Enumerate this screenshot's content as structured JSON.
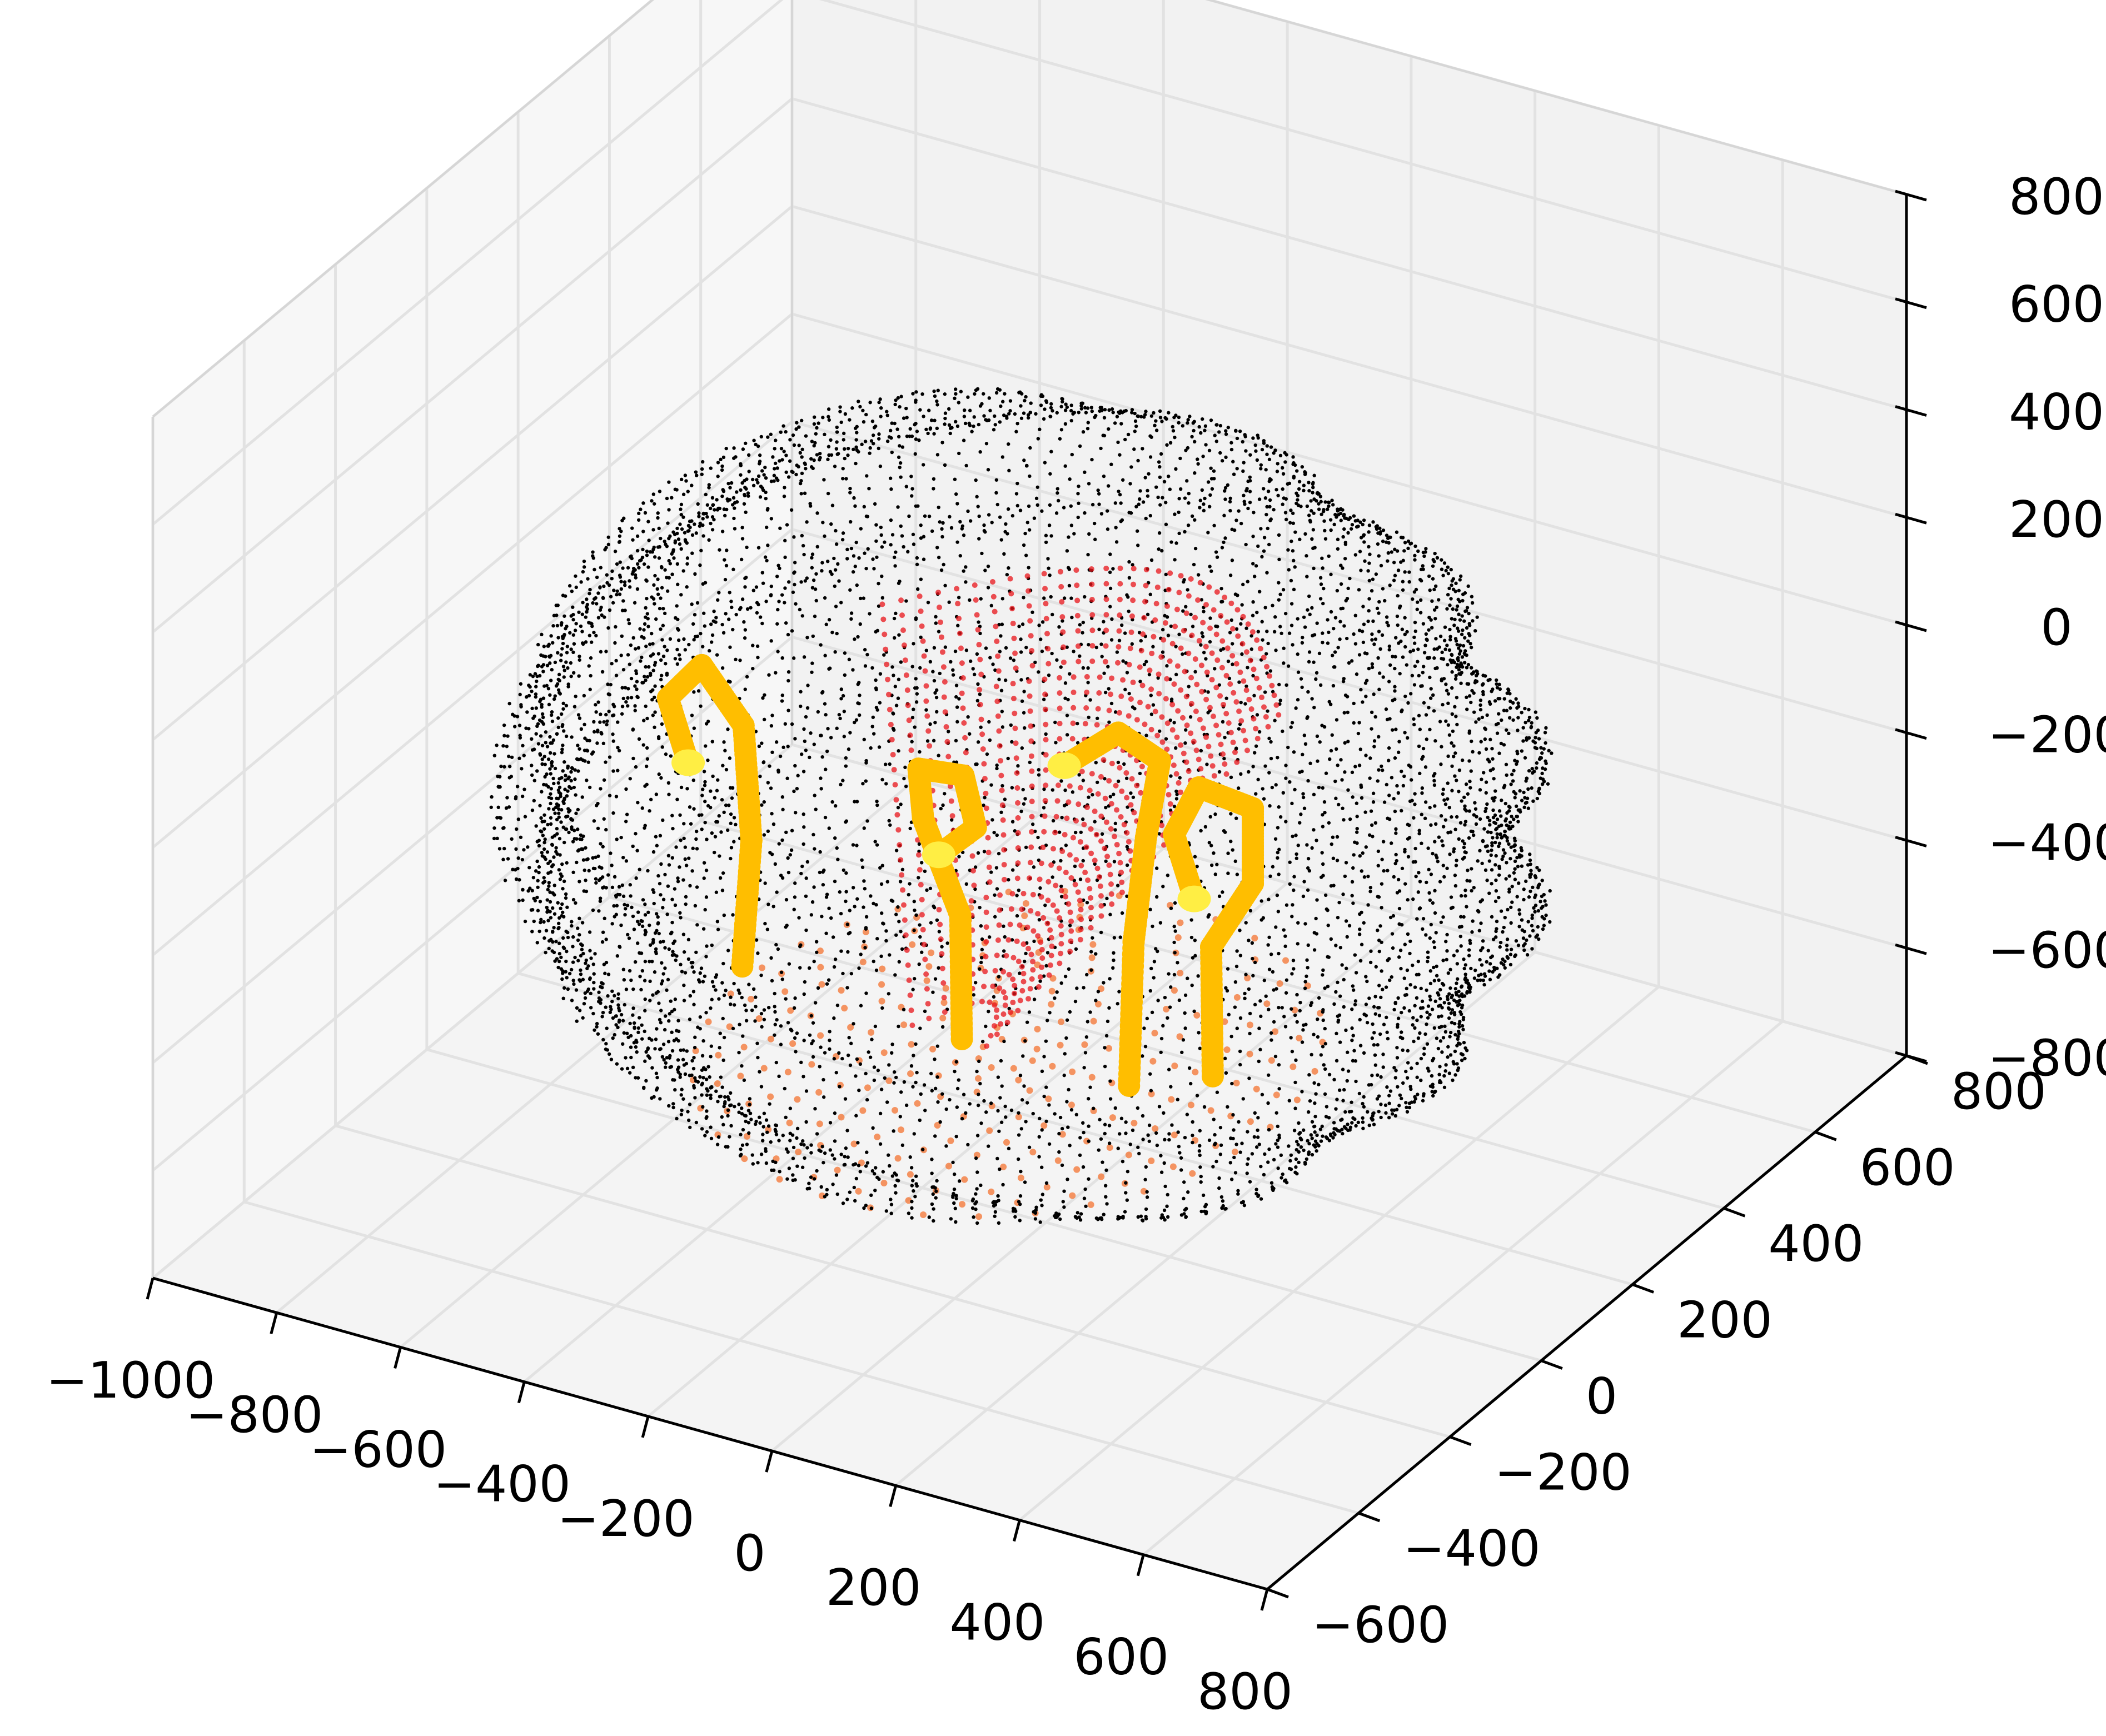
{
  "chart_data": {
    "type": "scatter",
    "projection": "3d",
    "grid": true,
    "legend": "none",
    "x_axis": {
      "lim": [
        -1000,
        800
      ],
      "ticks": [
        -1000,
        -800,
        -600,
        -400,
        -200,
        0,
        200,
        400,
        600,
        800
      ],
      "tick_labels": [
        "−1000",
        "−800",
        "−600",
        "−400",
        "−200",
        "0",
        "200",
        "400",
        "600",
        "800"
      ]
    },
    "y_axis": {
      "lim": [
        -600,
        800
      ],
      "ticks": [
        -600,
        -400,
        -200,
        0,
        200,
        400,
        600,
        800
      ],
      "tick_labels": [
        "−600",
        "−400",
        "−200",
        "0",
        "200",
        "400",
        "600",
        "800"
      ]
    },
    "z_axis": {
      "lim": [
        -800,
        800
      ],
      "ticks": [
        -800,
        -600,
        -400,
        -200,
        0,
        200,
        400,
        600,
        800
      ],
      "tick_labels": [
        "−800",
        "−600",
        "−400",
        "−200",
        "0",
        "200",
        "400",
        "600",
        "800"
      ]
    },
    "series": [
      {
        "role": "shell",
        "color": "#000000",
        "shape": "ellipsoid",
        "center": [
          -90,
          80,
          -120
        ],
        "radii": [
          720,
          520,
          640
        ],
        "z_range": [
          -640,
          520
        ]
      },
      {
        "role": "inner-surface",
        "color": "#e8141a",
        "shape": "curved-sheet",
        "z_range": [
          -560,
          320
        ]
      },
      {
        "role": "base",
        "color": "#f47a3c",
        "shape": "disc",
        "z": -620
      },
      {
        "role": "filaments",
        "color": "#ffbe00",
        "tip_color": "#ffee44",
        "paths": [
          [
            [
              -520,
              40,
              -520
            ],
            [
              -520,
              60,
              -300
            ],
            [
              -540,
              70,
              -100
            ],
            [
              -600,
              60,
              0
            ],
            [
              -640,
              40,
              -60
            ],
            [
              -600,
              30,
              -160
            ]
          ],
          [
            [
              -180,
              60,
              -560
            ],
            [
              -190,
              70,
              -340
            ],
            [
              -250,
              70,
              -180
            ],
            [
              -250,
              60,
              -80
            ],
            [
              -170,
              50,
              -60
            ],
            [
              -150,
              50,
              -150
            ],
            [
              -210,
              50,
              -220
            ]
          ],
          [
            [
              90,
              60,
              -560
            ],
            [
              90,
              70,
              -300
            ],
            [
              110,
              70,
              -100
            ],
            [
              140,
              60,
              60
            ],
            [
              80,
              50,
              100
            ],
            [
              0,
              40,
              20
            ]
          ],
          [
            [
              240,
              40,
              -480
            ],
            [
              230,
              50,
              -250
            ],
            [
              290,
              60,
              -120
            ],
            [
              290,
              60,
              20
            ],
            [
              210,
              50,
              40
            ],
            [
              170,
              50,
              -60
            ],
            [
              210,
              40,
              -160
            ]
          ]
        ]
      }
    ]
  }
}
